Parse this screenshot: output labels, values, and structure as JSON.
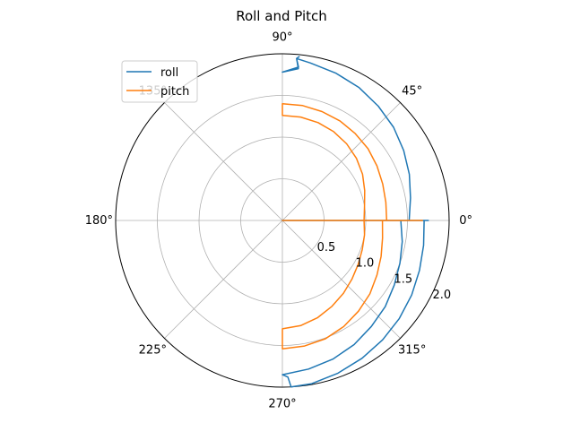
{
  "chart_data": {
    "type": "polar-line",
    "title": "Roll and Pitch",
    "angle_unit": "degrees",
    "rlim": [
      0,
      2.0
    ],
    "grid": true,
    "legend": {
      "placement": "top-left",
      "entries": [
        "roll",
        "pitch"
      ]
    },
    "angle_tick_labels": [
      {
        "angle": 0,
        "label": "0°"
      },
      {
        "angle": 45,
        "label": "45°"
      },
      {
        "angle": 90,
        "label": "90°"
      },
      {
        "angle": 135,
        "label": "135°"
      },
      {
        "angle": 180,
        "label": "180°"
      },
      {
        "angle": 225,
        "label": "225°"
      },
      {
        "angle": 270,
        "label": "270°"
      },
      {
        "angle": 315,
        "label": "315°"
      }
    ],
    "radial_tick_labels": [
      {
        "r": 0.5,
        "label": "0.5"
      },
      {
        "r": 1.0,
        "label": "1.0"
      },
      {
        "r": 1.5,
        "label": "1.5"
      },
      {
        "r": 2.0,
        "label": "2.0"
      }
    ],
    "radial_label_angle": 337.5,
    "series": [
      {
        "name": "roll",
        "color": "#1f77b4",
        "points": [
          [
            0,
            0
          ],
          [
            0,
            1.25
          ],
          [
            0,
            1.75
          ],
          [
            0,
            0
          ],
          [
            0,
            1.7
          ],
          [
            -10,
            1.72
          ],
          [
            -20,
            1.75
          ],
          [
            -30,
            1.79
          ],
          [
            -40,
            1.83
          ],
          [
            -50,
            1.87
          ],
          [
            -60,
            1.91
          ],
          [
            -70,
            1.95
          ],
          [
            -80,
            1.99
          ],
          [
            -87,
            2.0
          ],
          [
            -88,
            1.88
          ],
          [
            -90,
            1.85
          ],
          [
            -80,
            1.81
          ],
          [
            -70,
            1.77
          ],
          [
            -60,
            1.72
          ],
          [
            -50,
            1.66
          ],
          [
            -40,
            1.61
          ],
          [
            -30,
            1.55
          ],
          [
            -20,
            1.5
          ],
          [
            -10,
            1.46
          ],
          [
            0,
            1.42
          ],
          [
            0,
            1.52
          ],
          [
            10,
            1.56
          ],
          [
            20,
            1.62
          ],
          [
            30,
            1.68
          ],
          [
            40,
            1.74
          ],
          [
            50,
            1.79
          ],
          [
            60,
            1.84
          ],
          [
            70,
            1.88
          ],
          [
            80,
            1.92
          ],
          [
            85,
            1.95
          ],
          [
            84,
            1.85
          ],
          [
            90,
            1.78
          ],
          [
            84,
            1.83
          ],
          [
            85,
            1.95
          ],
          [
            84,
            1.98
          ]
        ]
      },
      {
        "name": "pitch",
        "color": "#ff7f0e",
        "points": [
          [
            0,
            0
          ],
          [
            0,
            1.1
          ],
          [
            0,
            1.6
          ],
          [
            0,
            1.68
          ],
          [
            0,
            0
          ],
          [
            0,
            1.2
          ],
          [
            -10,
            1.22
          ],
          [
            -20,
            1.26
          ],
          [
            -30,
            1.31
          ],
          [
            -40,
            1.37
          ],
          [
            -50,
            1.42
          ],
          [
            -60,
            1.47
          ],
          [
            -70,
            1.51
          ],
          [
            -80,
            1.53
          ],
          [
            -90,
            1.54
          ],
          [
            -90,
            1.4
          ],
          [
            -90,
            1.3
          ],
          [
            -80,
            1.28
          ],
          [
            -70,
            1.24
          ],
          [
            -60,
            1.19
          ],
          [
            -50,
            1.14
          ],
          [
            -40,
            1.09
          ],
          [
            -30,
            1.05
          ],
          [
            -20,
            1.02
          ],
          [
            -10,
            1.0
          ],
          [
            0,
            0.98
          ],
          [
            0,
            1.25
          ],
          [
            10,
            1.26
          ],
          [
            20,
            1.28
          ],
          [
            30,
            1.31
          ],
          [
            40,
            1.34
          ],
          [
            50,
            1.36
          ],
          [
            60,
            1.38
          ],
          [
            70,
            1.39
          ],
          [
            80,
            1.4
          ],
          [
            90,
            1.4
          ],
          [
            90,
            1.32
          ],
          [
            90,
            1.26
          ],
          [
            80,
            1.26
          ],
          [
            70,
            1.25
          ],
          [
            60,
            1.23
          ],
          [
            50,
            1.2
          ],
          [
            40,
            1.16
          ],
          [
            30,
            1.11
          ],
          [
            20,
            1.05
          ],
          [
            10,
            1.0
          ],
          [
            0,
            0.98
          ]
        ]
      }
    ]
  }
}
